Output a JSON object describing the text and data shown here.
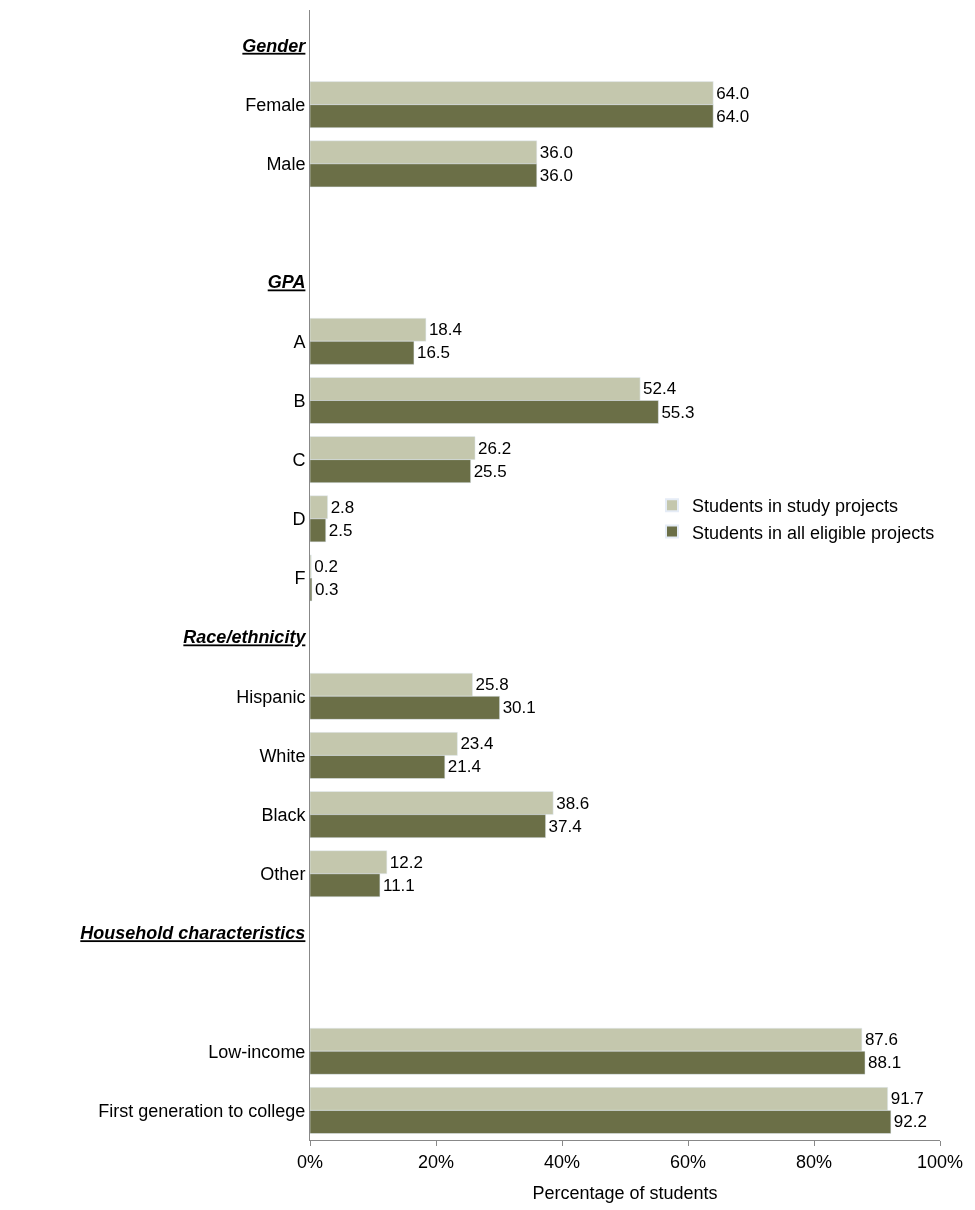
{
  "chart_data": {
    "type": "bar",
    "orientation": "horizontal",
    "xlabel": "Percentage of students",
    "categories": [
      "Gender",
      "Female",
      "Male",
      null,
      "GPA",
      "A",
      "B",
      "C",
      "D",
      "F",
      "Race/ethnicity",
      "Hispanic",
      "White",
      "Black",
      "Other",
      "Household characteristics",
      null,
      "Low-income",
      "First generation to college"
    ],
    "series": [
      {
        "name": "Students in study projects",
        "color": "#c4c7ad",
        "values": [
          null,
          64.0,
          36.0,
          null,
          null,
          18.4,
          52.4,
          26.2,
          2.8,
          0.2,
          null,
          25.8,
          23.4,
          38.6,
          12.2,
          null,
          null,
          87.6,
          91.7
        ],
        "value_labels": [
          null,
          "64.0",
          "36.0",
          null,
          null,
          "18.4",
          "52.4",
          "26.2",
          "2.8",
          "0.2",
          null,
          "25.8",
          "23.4",
          "38.6",
          "12.2",
          null,
          null,
          "87.6",
          "91.7"
        ]
      },
      {
        "name": "Students in all eligible projects",
        "color": "#6b6f47",
        "values": [
          null,
          64.0,
          36.0,
          null,
          null,
          16.5,
          55.3,
          25.5,
          2.5,
          0.3,
          null,
          30.1,
          21.4,
          37.4,
          11.1,
          null,
          null,
          88.1,
          92.2
        ],
        "value_labels": [
          null,
          "64.0",
          "36.0",
          null,
          null,
          "16.5",
          "55.3",
          "25.5",
          "2.5",
          "0.3",
          null,
          "30.1",
          "21.4",
          "37.4",
          "11.1",
          null,
          null,
          "88.1",
          "92.2"
        ]
      }
    ],
    "xlim": [
      0,
      100
    ],
    "xticks": [
      {
        "value": 0,
        "label": "0%"
      },
      {
        "value": 20,
        "label": "20%"
      },
      {
        "value": 40,
        "label": "40%"
      },
      {
        "value": 60,
        "label": "60%"
      },
      {
        "value": 80,
        "label": "80%"
      },
      {
        "value": 100,
        "label": "100%"
      }
    ],
    "legend": "right"
  }
}
